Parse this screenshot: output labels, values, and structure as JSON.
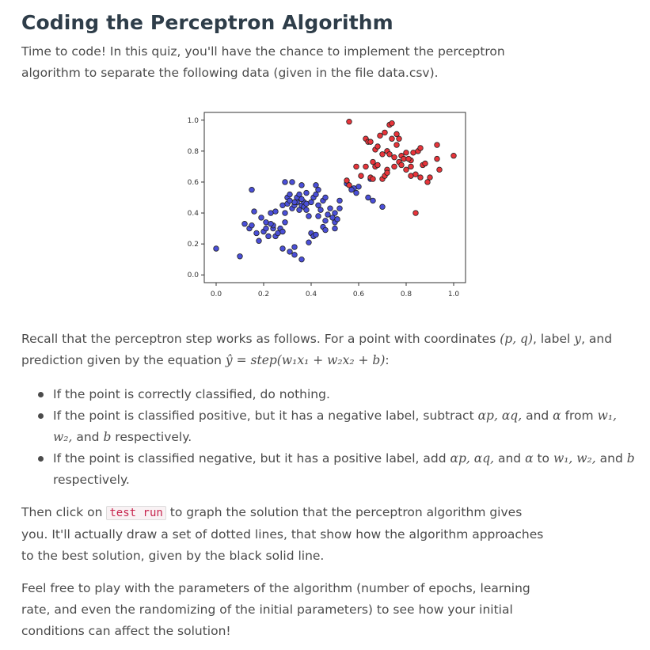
{
  "page": {
    "title": "Coding the Perceptron Algorithm",
    "intro": "Time to code! In this quiz, you'll have the chance to implement the perceptron algorithm to separate the following data (given in the file data.csv).",
    "recall": {
      "t1": "Recall that the perceptron step works as follows. For a point with coordinates ",
      "m1": "(p, q)",
      "t2": ", label ",
      "m2": "y",
      "t3": ", and prediction given by the equation ",
      "m3": "ŷ = step(w₁x₁ + w₂x₂ + b)",
      "t4": ":"
    },
    "bullets": [
      {
        "t1": "If the point is correctly classified, do nothing."
      },
      {
        "t1": "If the point is classified positive, but it has a negative label, subtract ",
        "m1": "αp, αq,",
        "t2": " and ",
        "m2": "α",
        "t3": " from ",
        "m3": "w₁, w₂,",
        "t4": " and ",
        "m4": "b",
        "t5": " respectively."
      },
      {
        "t1": "If the point is classified negative, but it has a positive label, add ",
        "m1": "αp, αq,",
        "t2": " and ",
        "m2": "α",
        "t3": " to ",
        "m3": "w₁, w₂,",
        "t4": " and ",
        "m4": "b",
        "t5": " respectively."
      }
    ],
    "para3": {
      "before": "Then click on ",
      "code": "test run",
      "after": " to graph the solution that the perceptron algorithm gives you. It'll actually draw a set of dotted lines, that show how the algorithm approaches to the best solution, given by the black solid line."
    },
    "para4": "Feel free to play with the parameters of the algorithm (number of epochs, learning rate, and even the randomizing of the initial parameters) to see how your initial conditions can affect the solution!"
  },
  "colors": {
    "blue": "#4a4fd8",
    "red": "#e8343a",
    "edge": "#222222",
    "heading": "#2e3d49"
  },
  "chart_data": {
    "type": "scatter",
    "xlim": [
      -0.05,
      1.05
    ],
    "ylim": [
      -0.05,
      1.05
    ],
    "xticks": [
      "0.0",
      "0.2",
      "0.4",
      "0.6",
      "0.8",
      "1.0"
    ],
    "yticks": [
      "0.0",
      "0.2",
      "0.4",
      "0.6",
      "0.8",
      "1.0"
    ],
    "grid": false,
    "series": [
      {
        "color": "blue",
        "points": [
          [
            0.0,
            0.17
          ],
          [
            0.1,
            0.12
          ],
          [
            0.12,
            0.33
          ],
          [
            0.14,
            0.3
          ],
          [
            0.15,
            0.32
          ],
          [
            0.18,
            0.22
          ],
          [
            0.17,
            0.27
          ],
          [
            0.16,
            0.41
          ],
          [
            0.15,
            0.55
          ],
          [
            0.19,
            0.37
          ],
          [
            0.2,
            0.28
          ],
          [
            0.21,
            0.34
          ],
          [
            0.23,
            0.4
          ],
          [
            0.24,
            0.3
          ],
          [
            0.24,
            0.32
          ],
          [
            0.25,
            0.25
          ],
          [
            0.26,
            0.27
          ],
          [
            0.27,
            0.3
          ],
          [
            0.28,
            0.28
          ],
          [
            0.28,
            0.45
          ],
          [
            0.29,
            0.34
          ],
          [
            0.29,
            0.4
          ],
          [
            0.3,
            0.46
          ],
          [
            0.3,
            0.5
          ],
          [
            0.31,
            0.52
          ],
          [
            0.32,
            0.43
          ],
          [
            0.33,
            0.45
          ],
          [
            0.34,
            0.47
          ],
          [
            0.35,
            0.42
          ],
          [
            0.36,
            0.45
          ],
          [
            0.37,
            0.47
          ],
          [
            0.37,
            0.44
          ],
          [
            0.38,
            0.46
          ],
          [
            0.32,
            0.6
          ],
          [
            0.34,
            0.5
          ],
          [
            0.36,
            0.49
          ],
          [
            0.38,
            0.42
          ],
          [
            0.39,
            0.38
          ],
          [
            0.4,
            0.47
          ],
          [
            0.41,
            0.5
          ],
          [
            0.42,
            0.52
          ],
          [
            0.43,
            0.45
          ],
          [
            0.44,
            0.42
          ],
          [
            0.45,
            0.48
          ],
          [
            0.46,
            0.5
          ],
          [
            0.43,
            0.38
          ],
          [
            0.46,
            0.35
          ],
          [
            0.47,
            0.39
          ],
          [
            0.48,
            0.43
          ],
          [
            0.5,
            0.4
          ],
          [
            0.5,
            0.34
          ],
          [
            0.49,
            0.37
          ],
          [
            0.51,
            0.36
          ],
          [
            0.5,
            0.3
          ],
          [
            0.4,
            0.27
          ],
          [
            0.41,
            0.25
          ],
          [
            0.28,
            0.17
          ],
          [
            0.31,
            0.15
          ],
          [
            0.33,
            0.18
          ],
          [
            0.33,
            0.13
          ],
          [
            0.36,
            0.1
          ],
          [
            0.39,
            0.21
          ],
          [
            0.42,
            0.26
          ],
          [
            0.45,
            0.31
          ],
          [
            0.46,
            0.29
          ],
          [
            0.52,
            0.43
          ],
          [
            0.52,
            0.48
          ],
          [
            0.55,
            0.59
          ],
          [
            0.59,
            0.53
          ],
          [
            0.64,
            0.5
          ],
          [
            0.66,
            0.48
          ],
          [
            0.7,
            0.44
          ],
          [
            0.65,
            0.62
          ],
          [
            0.6,
            0.57
          ],
          [
            0.58,
            0.56
          ],
          [
            0.57,
            0.55
          ],
          [
            0.43,
            0.55
          ],
          [
            0.42,
            0.58
          ],
          [
            0.38,
            0.53
          ],
          [
            0.35,
            0.52
          ],
          [
            0.33,
            0.47
          ],
          [
            0.31,
            0.48
          ],
          [
            0.25,
            0.41
          ],
          [
            0.23,
            0.33
          ],
          [
            0.21,
            0.3
          ],
          [
            0.22,
            0.25
          ],
          [
            0.36,
            0.58
          ],
          [
            0.29,
            0.6
          ]
        ]
      },
      {
        "color": "red",
        "points": [
          [
            0.56,
            0.99
          ],
          [
            0.63,
            0.88
          ],
          [
            0.64,
            0.86
          ],
          [
            0.65,
            0.63
          ],
          [
            0.67,
            0.7
          ],
          [
            0.66,
            0.73
          ],
          [
            0.67,
            0.81
          ],
          [
            0.68,
            0.83
          ],
          [
            0.7,
            0.62
          ],
          [
            0.71,
            0.64
          ],
          [
            0.72,
            0.68
          ],
          [
            0.7,
            0.78
          ],
          [
            0.72,
            0.8
          ],
          [
            0.73,
            0.97
          ],
          [
            0.74,
            0.98
          ],
          [
            0.75,
            0.76
          ],
          [
            0.74,
            0.88
          ],
          [
            0.76,
            0.84
          ],
          [
            0.77,
            0.73
          ],
          [
            0.77,
            0.88
          ],
          [
            0.78,
            0.77
          ],
          [
            0.79,
            0.75
          ],
          [
            0.8,
            0.68
          ],
          [
            0.82,
            0.74
          ],
          [
            0.82,
            0.7
          ],
          [
            0.83,
            0.79
          ],
          [
            0.82,
            0.64
          ],
          [
            0.84,
            0.65
          ],
          [
            0.85,
            0.8
          ],
          [
            0.86,
            0.82
          ],
          [
            0.87,
            0.71
          ],
          [
            0.88,
            0.72
          ],
          [
            0.89,
            0.6
          ],
          [
            0.94,
            0.68
          ],
          [
            0.9,
            0.63
          ],
          [
            0.93,
            0.75
          ],
          [
            0.93,
            0.84
          ],
          [
            1.0,
            0.77
          ],
          [
            0.66,
            0.62
          ],
          [
            0.63,
            0.7
          ],
          [
            0.61,
            0.64
          ],
          [
            0.68,
            0.71
          ],
          [
            0.75,
            0.7
          ],
          [
            0.78,
            0.71
          ],
          [
            0.56,
            0.58
          ],
          [
            0.59,
            0.7
          ],
          [
            0.72,
            0.66
          ],
          [
            0.8,
            0.79
          ],
          [
            0.73,
            0.78
          ],
          [
            0.69,
            0.9
          ],
          [
            0.71,
            0.92
          ],
          [
            0.81,
            0.75
          ],
          [
            0.86,
            0.63
          ],
          [
            0.55,
            0.61
          ],
          [
            0.84,
            0.4
          ],
          [
            0.76,
            0.91
          ],
          [
            0.65,
            0.86
          ]
        ]
      }
    ]
  }
}
